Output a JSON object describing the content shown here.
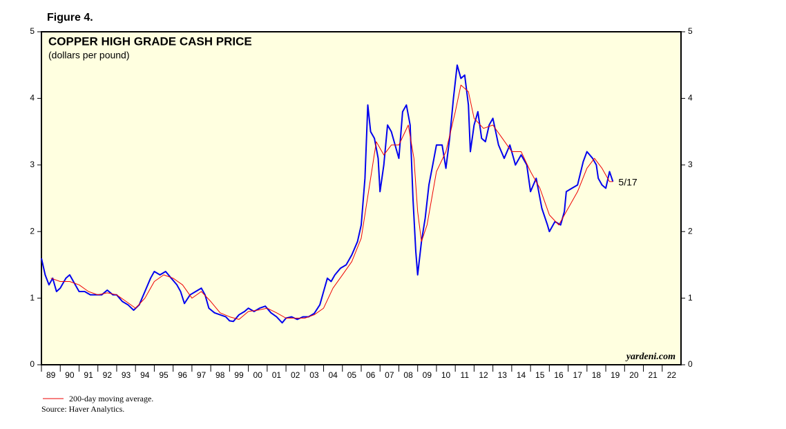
{
  "figure_label": "Figure 4.",
  "chart_data": {
    "type": "line",
    "title": "COPPER HIGH GRADE CASH PRICE",
    "subtitle": "(dollars per pound)",
    "watermark": "yardeni.com",
    "annotation": "5/17",
    "xlim": [
      1989,
      2023
    ],
    "xticks": [
      {
        "value": 1989,
        "label": "89"
      },
      {
        "value": 1990,
        "label": "90"
      },
      {
        "value": 1991,
        "label": "91"
      },
      {
        "value": 1992,
        "label": "92"
      },
      {
        "value": 1993,
        "label": "93"
      },
      {
        "value": 1994,
        "label": "94"
      },
      {
        "value": 1995,
        "label": "95"
      },
      {
        "value": 1996,
        "label": "96"
      },
      {
        "value": 1997,
        "label": "97"
      },
      {
        "value": 1998,
        "label": "98"
      },
      {
        "value": 1999,
        "label": "99"
      },
      {
        "value": 2000,
        "label": "00"
      },
      {
        "value": 2001,
        "label": "01"
      },
      {
        "value": 2002,
        "label": "02"
      },
      {
        "value": 2003,
        "label": "03"
      },
      {
        "value": 2004,
        "label": "04"
      },
      {
        "value": 2005,
        "label": "05"
      },
      {
        "value": 2006,
        "label": "06"
      },
      {
        "value": 2007,
        "label": "07"
      },
      {
        "value": 2008,
        "label": "08"
      },
      {
        "value": 2009,
        "label": "09"
      },
      {
        "value": 2010,
        "label": "10"
      },
      {
        "value": 2011,
        "label": "11"
      },
      {
        "value": 2012,
        "label": "12"
      },
      {
        "value": 2013,
        "label": "13"
      },
      {
        "value": 2014,
        "label": "14"
      },
      {
        "value": 2015,
        "label": "15"
      },
      {
        "value": 2016,
        "label": "16"
      },
      {
        "value": 2017,
        "label": "17"
      },
      {
        "value": 2018,
        "label": "18"
      },
      {
        "value": 2019,
        "label": "19"
      },
      {
        "value": 2020,
        "label": "20"
      },
      {
        "value": 2021,
        "label": "21"
      },
      {
        "value": 2022,
        "label": "22"
      }
    ],
    "ylim": [
      0,
      5
    ],
    "yticks": [
      0,
      1,
      2,
      3,
      4,
      5
    ],
    "series": [
      {
        "color": "#0000ee",
        "x": [
          1989.0,
          1989.2,
          1989.4,
          1989.6,
          1989.8,
          1990.0,
          1990.3,
          1990.5,
          1990.8,
          1991.0,
          1991.3,
          1991.6,
          1991.9,
          1992.2,
          1992.5,
          1992.8,
          1993.0,
          1993.3,
          1993.6,
          1993.9,
          1994.2,
          1994.5,
          1994.8,
          1995.0,
          1995.3,
          1995.6,
          1995.9,
          1996.2,
          1996.4,
          1996.6,
          1996.9,
          1997.2,
          1997.5,
          1997.7,
          1997.9,
          1998.2,
          1998.5,
          1998.8,
          1999.0,
          1999.2,
          1999.5,
          1999.8,
          2000.0,
          2000.3,
          2000.6,
          2000.9,
          2001.2,
          2001.5,
          2001.8,
          2002.0,
          2002.3,
          2002.6,
          2002.9,
          2003.2,
          2003.5,
          2003.8,
          2004.0,
          2004.2,
          2004.4,
          2004.6,
          2004.9,
          2005.2,
          2005.5,
          2005.8,
          2006.0,
          2006.2,
          2006.35,
          2006.5,
          2006.7,
          2006.9,
          2007.0,
          2007.2,
          2007.4,
          2007.6,
          2007.8,
          2008.0,
          2008.2,
          2008.4,
          2008.6,
          2008.75,
          2008.9,
          2009.0,
          2009.2,
          2009.4,
          2009.6,
          2009.8,
          2010.0,
          2010.3,
          2010.5,
          2010.7,
          2010.9,
          2011.1,
          2011.3,
          2011.5,
          2011.7,
          2011.8,
          2012.0,
          2012.2,
          2012.4,
          2012.6,
          2012.8,
          2013.0,
          2013.3,
          2013.6,
          2013.9,
          2014.2,
          2014.5,
          2014.8,
          2015.0,
          2015.3,
          2015.6,
          2015.9,
          2016.0,
          2016.3,
          2016.6,
          2016.8,
          2016.9,
          2017.2,
          2017.5,
          2017.8,
          2018.0,
          2018.3,
          2018.5,
          2018.6,
          2018.8,
          2019.0,
          2019.2,
          2019.38
        ],
        "values": [
          1.6,
          1.35,
          1.2,
          1.3,
          1.1,
          1.15,
          1.3,
          1.35,
          1.2,
          1.1,
          1.1,
          1.05,
          1.05,
          1.05,
          1.12,
          1.05,
          1.05,
          0.95,
          0.9,
          0.82,
          0.9,
          1.1,
          1.3,
          1.4,
          1.35,
          1.4,
          1.3,
          1.2,
          1.1,
          0.92,
          1.05,
          1.1,
          1.15,
          1.05,
          0.85,
          0.78,
          0.75,
          0.72,
          0.66,
          0.65,
          0.75,
          0.8,
          0.85,
          0.8,
          0.85,
          0.88,
          0.78,
          0.72,
          0.63,
          0.7,
          0.72,
          0.68,
          0.72,
          0.72,
          0.77,
          0.9,
          1.1,
          1.3,
          1.25,
          1.35,
          1.45,
          1.5,
          1.65,
          1.85,
          2.1,
          2.8,
          3.9,
          3.5,
          3.4,
          3.1,
          2.6,
          3.0,
          3.6,
          3.5,
          3.3,
          3.1,
          3.8,
          3.9,
          3.6,
          2.5,
          1.7,
          1.35,
          1.85,
          2.2,
          2.7,
          3.0,
          3.3,
          3.3,
          2.95,
          3.4,
          4.0,
          4.5,
          4.3,
          4.35,
          3.9,
          3.2,
          3.6,
          3.8,
          3.4,
          3.35,
          3.6,
          3.7,
          3.3,
          3.1,
          3.3,
          3.0,
          3.15,
          3.0,
          2.6,
          2.8,
          2.35,
          2.1,
          2.0,
          2.15,
          2.1,
          2.3,
          2.6,
          2.65,
          2.7,
          3.05,
          3.2,
          3.1,
          3.0,
          2.8,
          2.7,
          2.65,
          2.9,
          2.75
        ]
      },
      {
        "name": "200-day moving average.",
        "color": "#ee0000",
        "x": [
          1989.5,
          1990.0,
          1990.5,
          1991.0,
          1991.5,
          1992.0,
          1992.5,
          1993.0,
          1993.5,
          1994.0,
          1994.5,
          1995.0,
          1995.5,
          1996.0,
          1996.5,
          1997.0,
          1997.5,
          1998.0,
          1998.5,
          1999.0,
          1999.5,
          2000.0,
          2000.5,
          2001.0,
          2001.5,
          2002.0,
          2002.5,
          2003.0,
          2003.5,
          2004.0,
          2004.5,
          2005.0,
          2005.5,
          2006.0,
          2006.5,
          2006.8,
          2007.2,
          2007.6,
          2008.0,
          2008.5,
          2008.8,
          2009.0,
          2009.2,
          2009.5,
          2010.0,
          2010.5,
          2011.0,
          2011.3,
          2011.7,
          2012.0,
          2012.5,
          2013.0,
          2013.5,
          2014.0,
          2014.5,
          2015.0,
          2015.5,
          2016.0,
          2016.5,
          2017.0,
          2017.5,
          2018.0,
          2018.4,
          2018.8,
          2019.2,
          2019.38
        ],
        "values": [
          1.3,
          1.25,
          1.25,
          1.2,
          1.1,
          1.05,
          1.08,
          1.05,
          0.95,
          0.85,
          1.0,
          1.25,
          1.35,
          1.3,
          1.2,
          1.0,
          1.1,
          0.95,
          0.78,
          0.72,
          0.68,
          0.8,
          0.82,
          0.85,
          0.78,
          0.7,
          0.7,
          0.7,
          0.75,
          0.85,
          1.15,
          1.35,
          1.55,
          1.9,
          2.8,
          3.35,
          3.15,
          3.3,
          3.3,
          3.6,
          3.1,
          2.3,
          1.85,
          2.1,
          2.9,
          3.2,
          3.8,
          4.2,
          4.1,
          3.7,
          3.55,
          3.6,
          3.4,
          3.2,
          3.2,
          2.9,
          2.65,
          2.25,
          2.1,
          2.35,
          2.6,
          2.95,
          3.1,
          2.95,
          2.75,
          2.75
        ]
      }
    ],
    "source": "Source: Haver Analytics."
  }
}
